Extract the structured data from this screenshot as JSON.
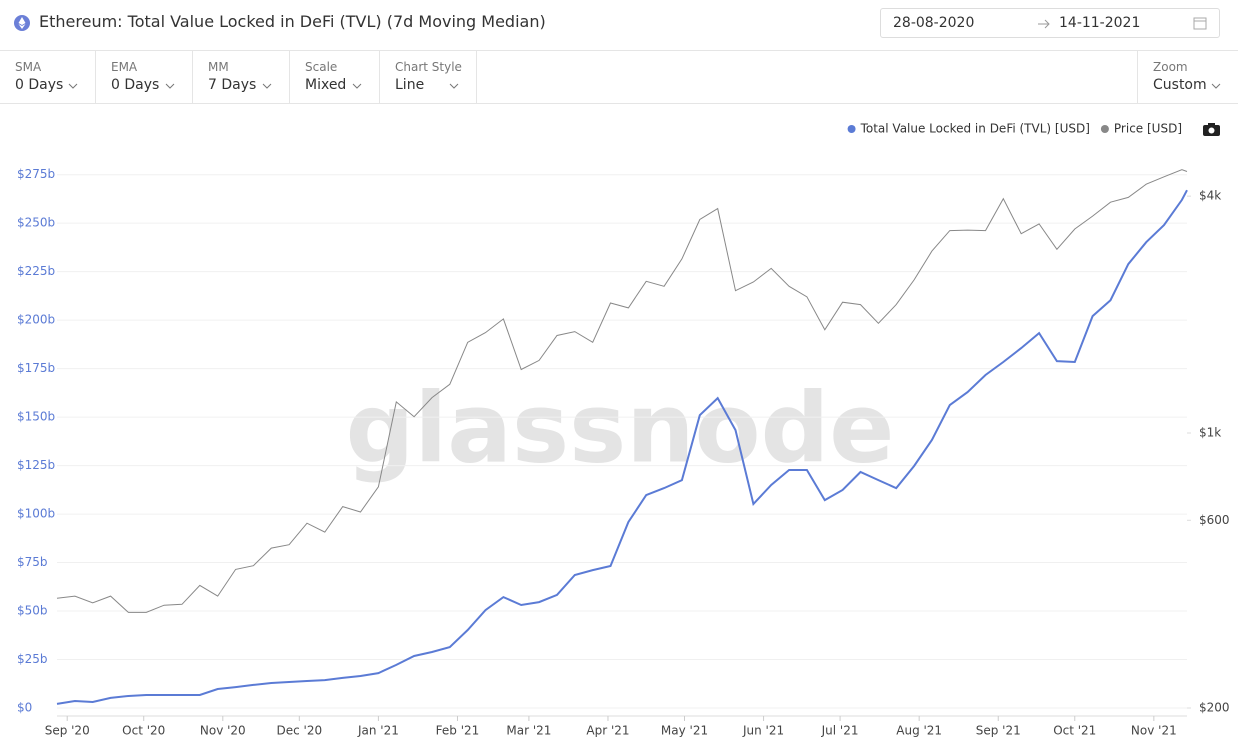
{
  "header": {
    "title": "Ethereum: Total Value Locked in DeFi (TVL) (7d Moving Median)",
    "date_from": "28-08-2020",
    "date_to": "14-11-2021"
  },
  "controls": [
    {
      "label": "SMA",
      "value": "0 Days"
    },
    {
      "label": "EMA",
      "value": "0 Days"
    },
    {
      "label": "MM",
      "value": "7 Days"
    },
    {
      "label": "Scale",
      "value": "Mixed"
    },
    {
      "label": "Chart Style",
      "value": "Line"
    },
    {
      "label": "Zoom",
      "value": "Custom"
    }
  ],
  "chart_data": {
    "type": "line",
    "watermark": "glassnode",
    "legend": "top-right",
    "grid": true,
    "y2scale": "log",
    "x": [
      "2020-08-28",
      "2020-09-04",
      "2020-09-11",
      "2020-09-18",
      "2020-09-25",
      "2020-10-02",
      "2020-10-09",
      "2020-10-16",
      "2020-10-23",
      "2020-10-30",
      "2020-11-06",
      "2020-11-13",
      "2020-11-20",
      "2020-11-27",
      "2020-12-04",
      "2020-12-11",
      "2020-12-18",
      "2020-12-25",
      "2021-01-01",
      "2021-01-08",
      "2021-01-15",
      "2021-01-22",
      "2021-01-29",
      "2021-02-05",
      "2021-02-12",
      "2021-02-19",
      "2021-02-26",
      "2021-03-05",
      "2021-03-12",
      "2021-03-19",
      "2021-03-26",
      "2021-04-02",
      "2021-04-09",
      "2021-04-16",
      "2021-04-23",
      "2021-04-30",
      "2021-05-07",
      "2021-05-14",
      "2021-05-21",
      "2021-05-28",
      "2021-06-04",
      "2021-06-11",
      "2021-06-18",
      "2021-06-25",
      "2021-07-02",
      "2021-07-09",
      "2021-07-16",
      "2021-07-23",
      "2021-07-30",
      "2021-08-06",
      "2021-08-13",
      "2021-08-20",
      "2021-08-27",
      "2021-09-03",
      "2021-09-10",
      "2021-09-17",
      "2021-09-24",
      "2021-10-01",
      "2021-10-08",
      "2021-10-15",
      "2021-10-22",
      "2021-10-29",
      "2021-11-05",
      "2021-11-12",
      "2021-11-14"
    ],
    "xlim": [
      "2020-08-28",
      "2021-11-14"
    ],
    "xticks": [
      {
        "value": "2020-09-01",
        "label": "Sep '20"
      },
      {
        "value": "2020-10-01",
        "label": "Oct '20"
      },
      {
        "value": "2020-11-01",
        "label": "Nov '20"
      },
      {
        "value": "2020-12-01",
        "label": "Dec '20"
      },
      {
        "value": "2021-01-01",
        "label": "Jan '21"
      },
      {
        "value": "2021-02-01",
        "label": "Feb '21"
      },
      {
        "value": "2021-03-01",
        "label": "Mar '21"
      },
      {
        "value": "2021-04-01",
        "label": "Apr '21"
      },
      {
        "value": "2021-05-01",
        "label": "May '21"
      },
      {
        "value": "2021-06-01",
        "label": "Jun '21"
      },
      {
        "value": "2021-07-01",
        "label": "Jul '21"
      },
      {
        "value": "2021-08-01",
        "label": "Aug '21"
      },
      {
        "value": "2021-09-01",
        "label": "Sep '21"
      },
      {
        "value": "2021-10-01",
        "label": "Oct '21"
      },
      {
        "value": "2021-11-01",
        "label": "Nov '21"
      }
    ],
    "ylim": [
      0,
      280
    ],
    "yticks": [
      {
        "value": 0,
        "label": "$0"
      },
      {
        "value": 25,
        "label": "$25b"
      },
      {
        "value": 50,
        "label": "$50b"
      },
      {
        "value": 75,
        "label": "$75b"
      },
      {
        "value": 100,
        "label": "$100b"
      },
      {
        "value": 125,
        "label": "$125b"
      },
      {
        "value": 150,
        "label": "$150b"
      },
      {
        "value": 175,
        "label": "$175b"
      },
      {
        "value": 200,
        "label": "$200b"
      },
      {
        "value": 225,
        "label": "$225b"
      },
      {
        "value": 250,
        "label": "$250b"
      },
      {
        "value": 275,
        "label": "$275b"
      }
    ],
    "y2lim": [
      200,
      4800
    ],
    "y2ticks": [
      {
        "value": 200,
        "label": "$200"
      },
      {
        "value": 600,
        "label": "$600"
      },
      {
        "value": 1000,
        "label": "$1k"
      },
      {
        "value": 4000,
        "label": "$4k"
      }
    ],
    "series": [
      {
        "name": "Total Value Locked in DeFi (TVL) [USD]",
        "color": "#5b7bd5",
        "axis": "y",
        "values": [
          2.1,
          3.6,
          3.1,
          5.2,
          6.2,
          6.7,
          6.7,
          6.7,
          6.7,
          9.8,
          10.8,
          11.9,
          12.9,
          13.4,
          13.9,
          14.4,
          15.5,
          16.5,
          18.0,
          22.2,
          26.8,
          28.9,
          31.4,
          40.2,
          50.5,
          57.2,
          53.1,
          54.6,
          58.3,
          68.6,
          71.1,
          73.2,
          95.9,
          109.8,
          113.4,
          117.5,
          151.0,
          159.8,
          143.3,
          105.2,
          115.0,
          122.7,
          122.7,
          107.2,
          112.4,
          121.7,
          117.5,
          113.4,
          124.8,
          138.2,
          156.2,
          162.9,
          171.7,
          178.4,
          185.6,
          193.3,
          178.9,
          178.4,
          202.1,
          210.3,
          228.9,
          240.2,
          249.0,
          262.0,
          267.0
        ]
      },
      {
        "name": "Price [USD]",
        "color": "#888888",
        "axis": "y2",
        "values": [
          380,
          385,
          370,
          385,
          350,
          350,
          365,
          367,
          410,
          385,
          450,
          460,
          510,
          520,
          590,
          560,
          650,
          630,
          730,
          1200,
          1100,
          1230,
          1330,
          1700,
          1800,
          1950,
          1450,
          1530,
          1770,
          1810,
          1700,
          2140,
          2080,
          2430,
          2360,
          2770,
          3490,
          3720,
          2300,
          2420,
          2620,
          2360,
          2220,
          1830,
          2150,
          2120,
          1900,
          2120,
          2450,
          2900,
          3270,
          3280,
          3270,
          3940,
          3210,
          3400,
          2930,
          3300,
          3560,
          3860,
          3970,
          4290,
          4480,
          4670,
          4620
        ]
      }
    ]
  }
}
